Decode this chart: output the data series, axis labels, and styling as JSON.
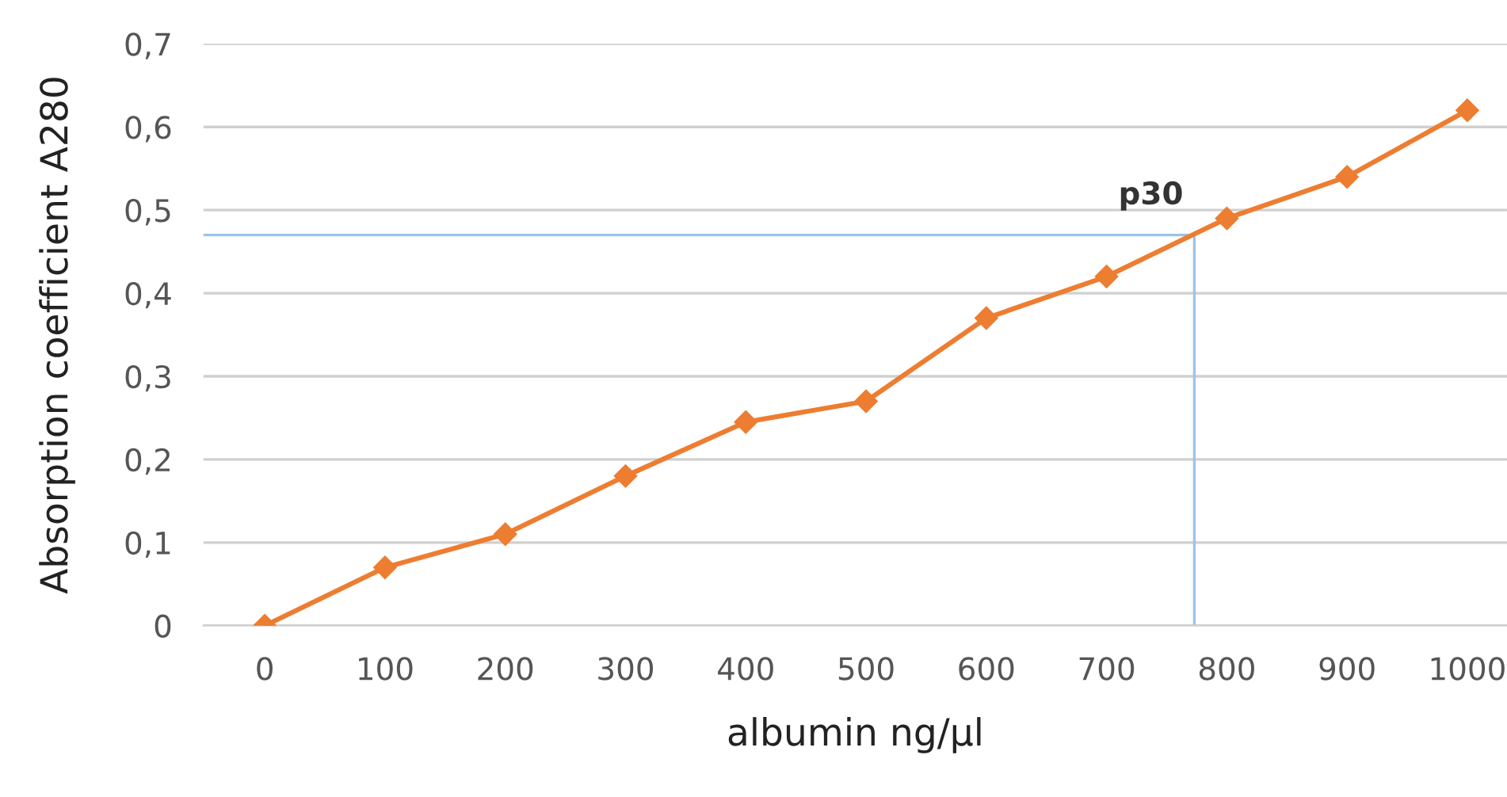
{
  "chart_data": {
    "type": "line",
    "xlabel": "albumin ng/µl",
    "ylabel": "Absorption coefficient A280",
    "x": [
      0,
      100,
      200,
      300,
      400,
      500,
      600,
      700,
      800,
      900,
      1000
    ],
    "series": [
      {
        "color": "#ed7d31",
        "values": [
          0,
          0.07,
          0.11,
          0.18,
          0.245,
          0.27,
          0.37,
          0.42,
          0.49,
          0.54,
          0.62
        ]
      }
    ],
    "xlim": [
      -51,
      1033
    ],
    "xticks": [
      0,
      100,
      200,
      300,
      400,
      500,
      600,
      700,
      800,
      900,
      1000
    ],
    "ylim": [
      0,
      0.7
    ],
    "yticks": [
      {
        "value": 0,
        "label": "0"
      },
      {
        "value": 0.1,
        "label": "0,1"
      },
      {
        "value": 0.2,
        "label": "0,2"
      },
      {
        "value": 0.3,
        "label": "0,3"
      },
      {
        "value": 0.4,
        "label": "0,4"
      },
      {
        "value": 0.5,
        "label": "0,5"
      },
      {
        "value": 0.6,
        "label": "0,6"
      },
      {
        "value": 0.7,
        "label": "0,7"
      }
    ],
    "ref_lines": [
      {
        "axis": "y",
        "value": 0.47,
        "color": "#9dc3e6"
      },
      {
        "axis": "x",
        "value": 773,
        "color": "#9dc3e6"
      }
    ],
    "annotations": [
      {
        "text": "p30",
        "x": 773,
        "y": 0.47
      }
    ],
    "grid": "y",
    "marker": "diamond",
    "line_style": "solid",
    "legend": false
  }
}
